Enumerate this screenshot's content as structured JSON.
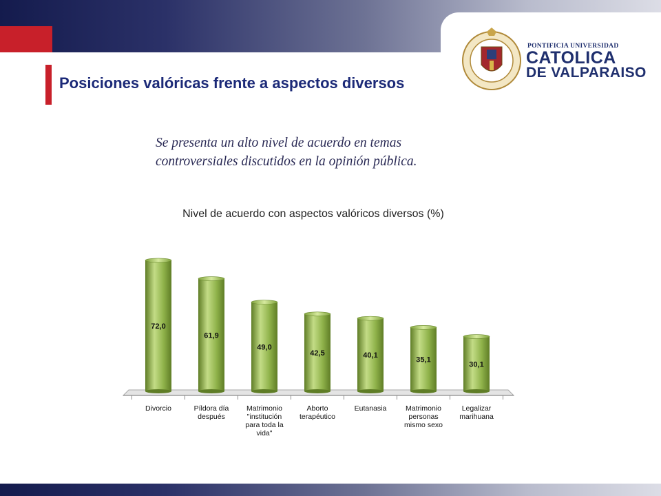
{
  "header": {
    "title": "Posiciones valóricas frente a aspectos diversos",
    "subtitle_line1": "Se presenta un alto nivel de acuerdo en temas",
    "subtitle_line2": "controversiales discutidos en la opinión pública.",
    "logo": {
      "line1": "PONTIFICIA UNIVERSIDAD",
      "line2": "CATOLICA",
      "line3": "DE VALPARAISO",
      "seal_text": "PONTIFICIA UNIVERSIDAD CATOLICA DE VALPARAISO"
    }
  },
  "colors": {
    "header_dark": "#141b4d",
    "accent_red": "#c8202a",
    "title_blue": "#1c2a78",
    "bar_green": "#8fb24a",
    "bar_green_light": "#c3dc86",
    "bar_green_dark": "#5f7d26"
  },
  "chart_data": {
    "type": "bar",
    "title": "Nivel de acuerdo con aspectos valóricos diversos (%)",
    "categories": [
      [
        "Divorcio"
      ],
      [
        "Píldora día",
        "después"
      ],
      [
        "Matrimonio",
        "\"institución",
        "para toda la",
        "vida\""
      ],
      [
        "Aborto",
        "terapéutico"
      ],
      [
        "Eutanasia"
      ],
      [
        "Matrimonio",
        "personas",
        "mismo sexo"
      ],
      [
        "Legalizar",
        "marihuana"
      ]
    ],
    "values": [
      72.0,
      61.9,
      49.0,
      42.5,
      40.1,
      35.1,
      30.1
    ],
    "value_labels": [
      "72,0",
      "61,9",
      "49,0",
      "42,5",
      "40,1",
      "35,1",
      "30,1"
    ],
    "ylim": [
      0,
      80
    ],
    "grid": false,
    "legend": "none"
  }
}
